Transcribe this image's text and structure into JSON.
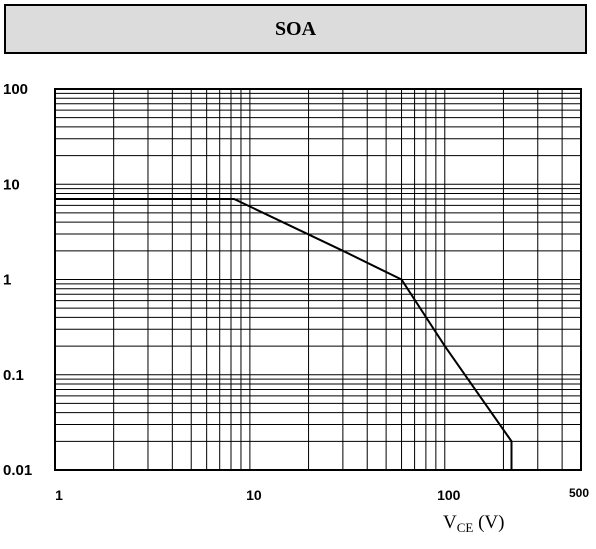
{
  "title": "SOA",
  "chart_data": {
    "type": "line",
    "title": "SOA",
    "xscale": "log",
    "yscale": "log",
    "xlim": [
      1,
      500
    ],
    "ylim": [
      0.01,
      100
    ],
    "x_ticks": [
      {
        "value": 1,
        "label": "1"
      },
      {
        "value": 10,
        "label": "10"
      },
      {
        "value": 100,
        "label": "100"
      },
      {
        "value": 500,
        "label": "500"
      }
    ],
    "y_ticks": [
      {
        "value": 100,
        "label": "100"
      },
      {
        "value": 10,
        "label": "10"
      },
      {
        "value": 1,
        "label": "1"
      },
      {
        "value": 0.1,
        "label": "0.1"
      },
      {
        "value": 0.01,
        "label": "0.01"
      }
    ],
    "xlabel": {
      "main": "V",
      "sub": "CE",
      "unit": "(V)"
    },
    "ylabel": "",
    "grid": true,
    "series": [
      {
        "x": [
          1,
          8.3,
          30,
          60,
          100,
          220,
          220
        ],
        "y": [
          7,
          7,
          2,
          1,
          0.2,
          0.02,
          0.01
        ]
      }
    ]
  }
}
